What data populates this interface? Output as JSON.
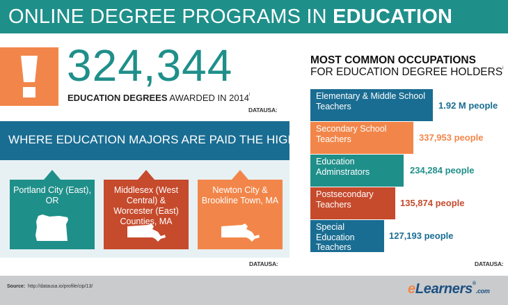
{
  "header": {
    "title_prefix": "ONLINE DEGREE PROGRAMS IN ",
    "title_bold": "EDUCATION"
  },
  "stat": {
    "number": "324,344",
    "label_bold": "EDUCATION DEGREES",
    "label_rest": " AWARDED IN 2014",
    "footnote_mark": "i",
    "source": "DATAUSA:"
  },
  "where": {
    "title": "WHERE EDUCATION MAJORS ARE PAID THE HIGHEST",
    "footnote_mark": "i",
    "source": "DATAUSA:",
    "cards": [
      {
        "label": "Portland City (East), OR",
        "color": "#1f8f8a",
        "icon": "oregon-map-icon"
      },
      {
        "label": "Middlesex (West Central) & Worcester (East) Counties, MA",
        "color": "#c64a2c",
        "icon": "massachusetts-map-icon"
      },
      {
        "label": "Newton City & Brookline Town, MA",
        "color": "#f2864a",
        "icon": "massachusetts-map-icon"
      }
    ]
  },
  "occupations": {
    "title_bold": "MOST COMMON OCCUPATIONS",
    "title_rest": "FOR EDUCATION DEGREE HOLDERS",
    "footnote_mark": "i",
    "source": "DATAUSA:",
    "items": [
      {
        "label": "Elementary & Middle School Teachers",
        "value": "1.92 M people",
        "color": "#1a6d92"
      },
      {
        "label": "Secondary School Teachers",
        "value": "337,953 people",
        "color": "#f2864a"
      },
      {
        "label": "Education Adminstrators",
        "value": "234,284 people",
        "color": "#1f8f8a"
      },
      {
        "label": "Postsecondary Teachers",
        "value": "135,874 people",
        "color": "#c64a2c"
      },
      {
        "label": "Special Education Teachers",
        "value": "127,193 people",
        "color": "#1a6d92"
      }
    ]
  },
  "footer": {
    "source_label": "Source:",
    "source_url": "http://datausa.io/profile/cip/13/",
    "logo_e": "e",
    "logo_main": "Learners",
    "logo_reg": "®",
    "logo_com": ".com"
  },
  "colors": {
    "teal": "#1f8f8a",
    "blue": "#1a6d92",
    "orange": "#f2864a",
    "red": "#c64a2c"
  }
}
